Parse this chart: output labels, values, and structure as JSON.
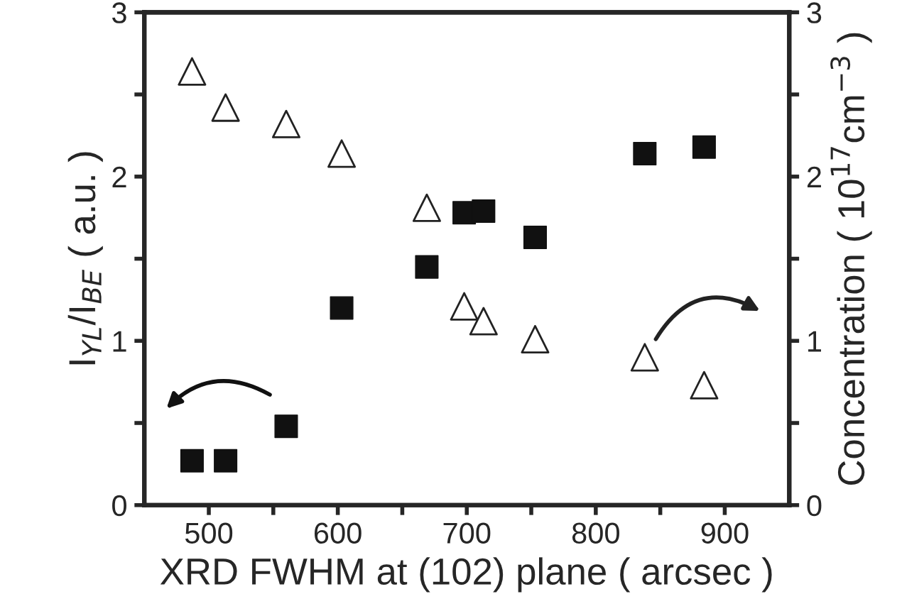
{
  "chart_data": {
    "type": "scatter",
    "xlabel": "XRD FWHM at (102) plane ( arcsec )",
    "ylabel": "I$_{YL}$/I$_{BE}$ ( a.u. )",
    "y2label": "Concentration ( 10$^{17}$cm$^{−3}$ )",
    "xlim": [
      450,
      950
    ],
    "xticks": [
      500,
      {
        "value": 550,
        "label": null
      },
      600,
      {
        "value": 650,
        "label": null
      },
      700,
      {
        "value": 750,
        "label": null
      },
      800,
      {
        "value": 850,
        "label": null
      },
      900
    ],
    "ylim": [
      0,
      3
    ],
    "yticks": [
      0,
      {
        "value": 0.5,
        "label": null
      },
      1,
      {
        "value": 1.5,
        "label": null
      },
      2,
      {
        "value": 2.5,
        "label": null
      },
      3
    ],
    "y2lim": [
      0,
      3
    ],
    "y2ticks": [
      0,
      {
        "value": 0.5,
        "label": null
      },
      1,
      {
        "value": 1.5,
        "label": null
      },
      2,
      {
        "value": 2.5,
        "label": null
      },
      3
    ],
    "grid": false,
    "series": [
      {
        "color": "#111111",
        "marker": "square",
        "axis": "y",
        "x": [
          487,
          513,
          560,
          603,
          669,
          698,
          713,
          753,
          838,
          884
        ],
        "values": [
          0.27,
          0.27,
          0.48,
          1.2,
          1.45,
          1.78,
          1.79,
          1.63,
          2.14,
          2.18
        ]
      },
      {
        "color": "#222222",
        "marker": "triangle",
        "axis": "y2",
        "x": [
          487,
          513,
          560,
          603,
          669,
          698,
          713,
          753,
          838,
          884
        ],
        "values": [
          2.64,
          2.42,
          2.32,
          2.14,
          1.81,
          1.21,
          1.12,
          1.01,
          0.9,
          0.73
        ]
      }
    ]
  }
}
